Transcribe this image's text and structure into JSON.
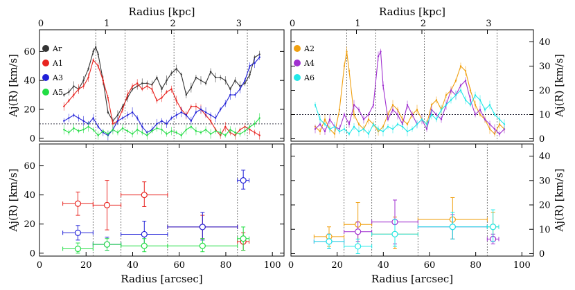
{
  "chart_data": [
    {
      "type": "line",
      "panel": "top-left",
      "xlabel": "",
      "ylabel": "Aj(R) [km/s]",
      "top_xlabel": "Radius [kpc]",
      "xlim": [
        0,
        100
      ],
      "ylim": [
        -2,
        75
      ],
      "yticks": [
        0,
        20,
        40,
        60
      ],
      "top_ticks": [
        {
          "label": "0",
          "x": 0
        },
        {
          "label": "1",
          "x": 27
        },
        {
          "label": "2",
          "x": 54
        },
        {
          "label": "3",
          "x": 81
        }
      ],
      "vlines": [
        23,
        35,
        55,
        85
      ],
      "hline": 10,
      "legend_position": "top-left",
      "series": [
        {
          "name": "Ar",
          "color": "#333333",
          "x": [
            10,
            12,
            14,
            16,
            18,
            20,
            22,
            23,
            24,
            26,
            28,
            30,
            32,
            34,
            36,
            38,
            40,
            42,
            44,
            46,
            48,
            50,
            52,
            54,
            56,
            58,
            60,
            62,
            64,
            66,
            68,
            70,
            72,
            74,
            76,
            78,
            80,
            82,
            84,
            86,
            88,
            90
          ],
          "y": [
            30,
            32,
            36,
            34,
            40,
            48,
            60,
            63,
            58,
            40,
            18,
            12,
            16,
            22,
            28,
            34,
            36,
            38,
            38,
            37,
            42,
            34,
            40,
            45,
            48,
            44,
            30,
            35,
            42,
            40,
            38,
            46,
            42,
            42,
            40,
            34,
            40,
            36,
            38,
            44,
            56,
            58
          ]
        },
        {
          "name": "A1",
          "color": "#e8231f",
          "x": [
            10,
            12,
            14,
            16,
            18,
            20,
            22,
            24,
            26,
            28,
            30,
            32,
            34,
            36,
            38,
            40,
            42,
            44,
            46,
            48,
            50,
            52,
            54,
            56,
            58,
            60,
            62,
            64,
            66,
            68,
            70,
            72,
            74,
            76,
            78,
            80,
            82,
            84,
            86,
            88,
            90
          ],
          "y": [
            22,
            26,
            30,
            34,
            36,
            42,
            54,
            50,
            40,
            28,
            10,
            12,
            20,
            30,
            36,
            38,
            34,
            36,
            34,
            26,
            28,
            32,
            34,
            26,
            20,
            16,
            22,
            22,
            20,
            16,
            12,
            6,
            2,
            8,
            4,
            2,
            6,
            8,
            6,
            4,
            2
          ]
        },
        {
          "name": "A3",
          "color": "#2020d8",
          "x": [
            10,
            12,
            14,
            16,
            18,
            20,
            22,
            24,
            26,
            28,
            30,
            32,
            34,
            36,
            38,
            40,
            42,
            44,
            46,
            48,
            50,
            52,
            54,
            56,
            58,
            60,
            62,
            64,
            66,
            68,
            70,
            72,
            74,
            76,
            78,
            80,
            82,
            84,
            86,
            88,
            90
          ],
          "y": [
            12,
            14,
            16,
            14,
            12,
            10,
            14,
            8,
            4,
            2,
            6,
            12,
            14,
            16,
            18,
            14,
            8,
            4,
            6,
            10,
            12,
            10,
            14,
            16,
            18,
            16,
            12,
            18,
            20,
            18,
            16,
            14,
            20,
            24,
            30,
            30,
            34,
            40,
            50,
            52,
            56
          ]
        },
        {
          "name": "A5",
          "color": "#22dd44",
          "x": [
            10,
            12,
            14,
            16,
            18,
            20,
            22,
            24,
            26,
            28,
            30,
            32,
            34,
            36,
            38,
            40,
            42,
            44,
            46,
            48,
            50,
            52,
            54,
            56,
            58,
            60,
            62,
            64,
            66,
            68,
            70,
            72,
            74,
            76,
            78,
            80,
            82,
            84,
            86,
            88,
            90
          ],
          "y": [
            6,
            4,
            7,
            5,
            6,
            8,
            6,
            2,
            5,
            3,
            6,
            4,
            7,
            5,
            3,
            6,
            4,
            2,
            5,
            7,
            6,
            3,
            5,
            4,
            2,
            6,
            8,
            5,
            4,
            6,
            3,
            5,
            4,
            2,
            6,
            4,
            3,
            5,
            8,
            10,
            14
          ]
        }
      ]
    },
    {
      "type": "line",
      "panel": "top-right",
      "xlabel": "",
      "ylabel": "Aj(R) [km/s]",
      "top_xlabel": "Radius [kpc]",
      "xlim": [
        0,
        100
      ],
      "ylim": [
        -1,
        45
      ],
      "yticks": [
        0,
        10,
        20,
        30,
        40
      ],
      "top_ticks": [
        {
          "label": "0",
          "x": 0
        },
        {
          "label": "1",
          "x": 27
        },
        {
          "label": "2",
          "x": 54
        },
        {
          "label": "3",
          "x": 81
        }
      ],
      "vlines": [
        23,
        35,
        55,
        85
      ],
      "hline": 10,
      "legend_position": "top-left",
      "series": [
        {
          "name": "A2",
          "color": "#f0a010",
          "x": [
            10,
            12,
            14,
            16,
            18,
            20,
            22,
            23,
            24,
            26,
            28,
            30,
            32,
            34,
            36,
            38,
            40,
            42,
            44,
            46,
            48,
            50,
            52,
            54,
            56,
            58,
            60,
            62,
            64,
            66,
            68,
            70,
            72,
            74,
            76,
            78,
            80,
            82,
            84,
            86,
            88
          ],
          "y": [
            5,
            3,
            8,
            4,
            2,
            12,
            30,
            36,
            28,
            10,
            6,
            4,
            8,
            6,
            3,
            5,
            10,
            14,
            12,
            8,
            6,
            10,
            12,
            8,
            6,
            14,
            16,
            12,
            18,
            20,
            24,
            30,
            28,
            20,
            14,
            10,
            8,
            4,
            2,
            6,
            4
          ]
        },
        {
          "name": "A4",
          "color": "#a030d0",
          "x": [
            10,
            12,
            14,
            16,
            18,
            20,
            22,
            24,
            26,
            28,
            30,
            32,
            34,
            36,
            37,
            38,
            40,
            42,
            44,
            46,
            48,
            50,
            52,
            54,
            56,
            58,
            60,
            62,
            64,
            66,
            68,
            70,
            72,
            74,
            76,
            78,
            80,
            82,
            84,
            86,
            88
          ],
          "y": [
            4,
            6,
            3,
            8,
            5,
            4,
            10,
            6,
            14,
            12,
            8,
            10,
            14,
            34,
            36,
            22,
            8,
            12,
            10,
            6,
            14,
            10,
            6,
            8,
            4,
            12,
            10,
            8,
            14,
            20,
            18,
            22,
            24,
            16,
            10,
            12,
            8,
            6,
            4,
            2,
            4
          ]
        },
        {
          "name": "A6",
          "color": "#20e8e8",
          "x": [
            10,
            12,
            14,
            16,
            18,
            20,
            22,
            24,
            26,
            28,
            30,
            32,
            34,
            36,
            38,
            40,
            42,
            44,
            46,
            48,
            50,
            52,
            54,
            56,
            58,
            60,
            62,
            64,
            66,
            68,
            70,
            72,
            74,
            76,
            78,
            80,
            82,
            84,
            86,
            88
          ],
          "y": [
            14,
            8,
            6,
            4,
            5,
            3,
            4,
            2,
            5,
            3,
            4,
            2,
            6,
            4,
            3,
            5,
            4,
            6,
            5,
            3,
            4,
            6,
            8,
            6,
            10,
            8,
            12,
            14,
            16,
            18,
            20,
            16,
            14,
            18,
            16,
            12,
            14,
            10,
            8,
            6
          ]
        }
      ]
    },
    {
      "type": "scatter",
      "panel": "bottom-left",
      "xlabel": "Radius [arcsec]",
      "ylabel": "Aj(R) [km/s]",
      "xlim": [
        0,
        105
      ],
      "xticks": [
        0,
        20,
        40,
        60,
        80,
        100
      ],
      "ylim": [
        -2,
        75
      ],
      "yticks": [
        0,
        20,
        40,
        60
      ],
      "vlines": [
        23,
        35,
        55,
        85
      ],
      "series": [
        {
          "name": "A1",
          "color": "#e8231f",
          "points": [
            {
              "x": 16.5,
              "y": 34,
              "xlo": 10,
              "xhi": 23,
              "ylo": 26,
              "yhi": 42
            },
            {
              "x": 29,
              "y": 33,
              "xlo": 23,
              "xhi": 35,
              "ylo": 16,
              "yhi": 50
            },
            {
              "x": 45,
              "y": 40,
              "xlo": 35,
              "xhi": 55,
              "ylo": 32,
              "yhi": 49
            },
            {
              "x": 70,
              "y": 18,
              "xlo": 55,
              "xhi": 85,
              "ylo": 10,
              "yhi": 26
            },
            {
              "x": 87.5,
              "y": 8,
              "xlo": 85,
              "xhi": 90,
              "ylo": 2,
              "yhi": 14
            }
          ]
        },
        {
          "name": "A3",
          "color": "#2020d8",
          "points": [
            {
              "x": 16.5,
              "y": 14,
              "xlo": 10,
              "xhi": 23,
              "ylo": 9,
              "yhi": 19
            },
            {
              "x": 29,
              "y": 6,
              "xlo": 23,
              "xhi": 35,
              "ylo": 2,
              "yhi": 11
            },
            {
              "x": 45,
              "y": 13,
              "xlo": 35,
              "xhi": 55,
              "ylo": 5,
              "yhi": 22
            },
            {
              "x": 70,
              "y": 18,
              "xlo": 55,
              "xhi": 85,
              "ylo": 9,
              "yhi": 28
            },
            {
              "x": 87.5,
              "y": 50,
              "xlo": 85,
              "xhi": 90,
              "ylo": 44,
              "yhi": 57
            }
          ]
        },
        {
          "name": "A5",
          "color": "#22dd44",
          "points": [
            {
              "x": 16.5,
              "y": 3,
              "xlo": 10,
              "xhi": 23,
              "ylo": 0,
              "yhi": 7
            },
            {
              "x": 29,
              "y": 6,
              "xlo": 23,
              "xhi": 35,
              "ylo": 2,
              "yhi": 10
            },
            {
              "x": 45,
              "y": 5,
              "xlo": 35,
              "xhi": 55,
              "ylo": 1,
              "yhi": 10
            },
            {
              "x": 70,
              "y": 5,
              "xlo": 55,
              "xhi": 85,
              "ylo": 1,
              "yhi": 10
            },
            {
              "x": 87.5,
              "y": 10,
              "xlo": 85,
              "xhi": 90,
              "ylo": 2,
              "yhi": 18
            }
          ]
        }
      ]
    },
    {
      "type": "scatter",
      "panel": "bottom-right",
      "xlabel": "Radius [arcsec]",
      "ylabel": "Aj(R) [km/s]",
      "xlim": [
        0,
        105
      ],
      "xticks": [
        0,
        20,
        40,
        60,
        80,
        100
      ],
      "ylim": [
        -1,
        45
      ],
      "yticks": [
        0,
        10,
        20,
        30,
        40
      ],
      "vlines": [
        23,
        35,
        55,
        85
      ],
      "series": [
        {
          "name": "A2",
          "color": "#f0a010",
          "points": [
            {
              "x": 16.5,
              "y": 7,
              "xlo": 10,
              "xhi": 23,
              "ylo": 3,
              "yhi": 11
            },
            {
              "x": 29,
              "y": 12,
              "xlo": 23,
              "xhi": 35,
              "ylo": 3,
              "yhi": 21
            },
            {
              "x": 45,
              "y": 8,
              "xlo": 35,
              "xhi": 55,
              "ylo": 2,
              "yhi": 15
            },
            {
              "x": 70,
              "y": 14,
              "xlo": 55,
              "xhi": 85,
              "ylo": 6,
              "yhi": 23
            },
            {
              "x": 87.5,
              "y": 11,
              "xlo": 85,
              "xhi": 90,
              "ylo": 5,
              "yhi": 17
            }
          ]
        },
        {
          "name": "A4",
          "color": "#a030d0",
          "points": [
            {
              "x": 16.5,
              "y": 5,
              "xlo": 10,
              "xhi": 23,
              "ylo": 2,
              "yhi": 8
            },
            {
              "x": 29,
              "y": 9,
              "xlo": 23,
              "xhi": 35,
              "ylo": 5,
              "yhi": 13
            },
            {
              "x": 45,
              "y": 13,
              "xlo": 35,
              "xhi": 55,
              "ylo": 4,
              "yhi": 22
            },
            {
              "x": 70,
              "y": 11,
              "xlo": 55,
              "xhi": 85,
              "ylo": 6,
              "yhi": 16
            },
            {
              "x": 87.5,
              "y": 6,
              "xlo": 85,
              "xhi": 90,
              "ylo": 4,
              "yhi": 8
            }
          ]
        },
        {
          "name": "A6",
          "color": "#20e8e8",
          "points": [
            {
              "x": 16.5,
              "y": 5,
              "xlo": 10,
              "xhi": 23,
              "ylo": 2,
              "yhi": 8
            },
            {
              "x": 29,
              "y": 3,
              "xlo": 23,
              "xhi": 35,
              "ylo": 0,
              "yhi": 6
            },
            {
              "x": 45,
              "y": 8,
              "xlo": 35,
              "xhi": 55,
              "ylo": 3,
              "yhi": 14
            },
            {
              "x": 70,
              "y": 11,
              "xlo": 55,
              "xhi": 85,
              "ylo": 6,
              "yhi": 17
            },
            {
              "x": 87.5,
              "y": 11,
              "xlo": 85,
              "xhi": 90,
              "ylo": 5,
              "yhi": 18
            }
          ]
        }
      ]
    }
  ]
}
